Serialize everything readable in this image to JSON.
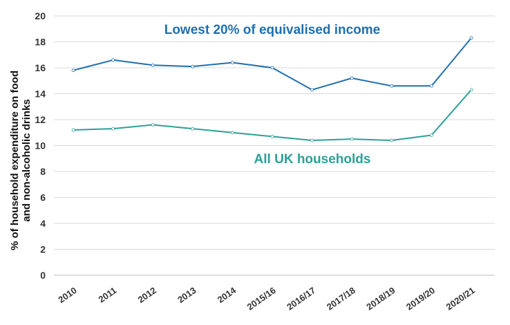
{
  "chart_data": {
    "type": "line",
    "categories": [
      "2010",
      "2011",
      "2012",
      "2013",
      "2014",
      "2015/16",
      "2016/17",
      "2017/18",
      "2018/19",
      "2019/20",
      "2020/21"
    ],
    "series": [
      {
        "name": "Lowest 20% of equivalised income",
        "color": "#1f6faf",
        "values": [
          15.8,
          16.6,
          16.2,
          16.1,
          16.4,
          16.0,
          14.3,
          15.2,
          14.6,
          14.6,
          18.3
        ]
      },
      {
        "name": "All UK households",
        "color": "#2aa197",
        "values": [
          11.2,
          11.3,
          11.6,
          11.3,
          11.0,
          10.7,
          10.4,
          10.5,
          10.4,
          10.8,
          14.3
        ]
      }
    ],
    "ylabel_line1": "% of household expenditure on food",
    "ylabel_line2": "and non-alcoholic drinks",
    "ylim": [
      0,
      20
    ],
    "yticks": [
      "0",
      "2",
      "4",
      "6",
      "8",
      "10",
      "12",
      "14",
      "16",
      "18",
      "20"
    ],
    "grid": true
  }
}
